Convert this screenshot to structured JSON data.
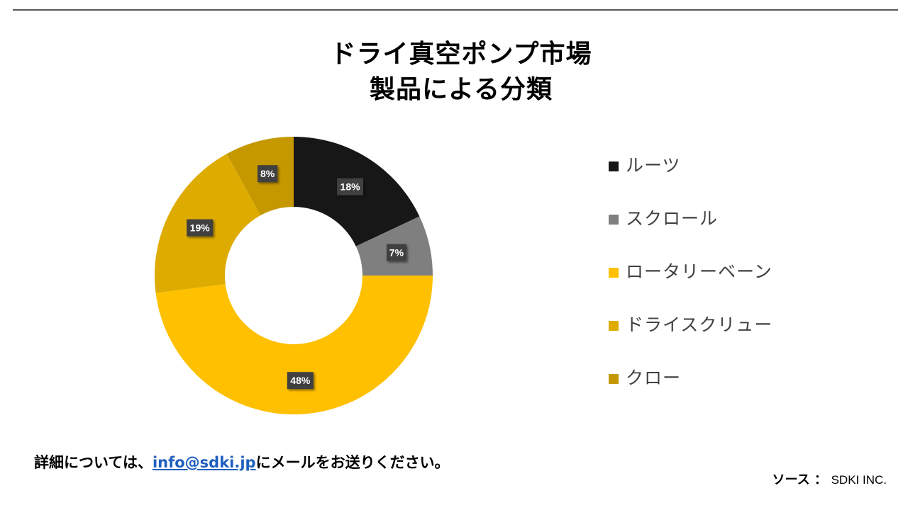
{
  "title_line1": "ドライ真空ポンプ市場",
  "title_line2": "製品による分類",
  "chart_data": {
    "type": "pie",
    "style": "donut",
    "title": "ドライ真空ポンプ市場 製品による分類",
    "categories": [
      "ルーツ",
      "スクロール",
      "ロータリーベーン",
      "ドライスクリュー",
      "クロー"
    ],
    "values": [
      18,
      7,
      48,
      19,
      8
    ],
    "data_labels": [
      "18%",
      "7%",
      "48%",
      "19%",
      "8%"
    ],
    "colors": [
      "#171717",
      "#7f7f7f",
      "#ffc000",
      "#deab00",
      "#c59800"
    ],
    "legend_position": "right"
  },
  "footer": {
    "prefix": "詳細については、",
    "email": "info@sdki.jp",
    "suffix": "にメールをお送りください。"
  },
  "source": {
    "label": "ソース ：",
    "value": "SDKI INC."
  }
}
